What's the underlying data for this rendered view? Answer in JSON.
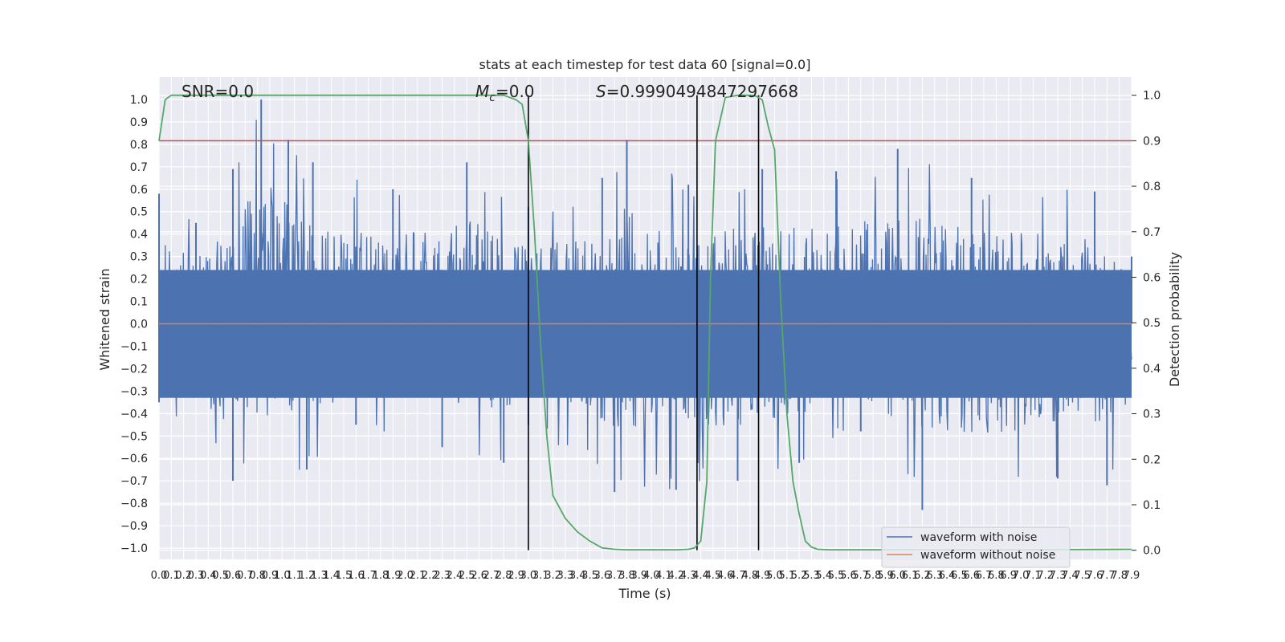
{
  "chart_data": {
    "type": "line",
    "title": "stats at each timestep for test data 60 [signal=0.0]",
    "xlabel": "Time (s)",
    "ylabel": "Whitened strain",
    "y2label": "Detection probability",
    "xlim": [
      0.0,
      7.9
    ],
    "ylim": [
      -1.05,
      1.1
    ],
    "y2lim": [
      -0.02,
      1.04
    ],
    "x_ticks": [
      "0.0",
      "0.1",
      "0.2",
      "0.3",
      "0.4",
      "0.5",
      "0.6",
      "0.7",
      "0.8",
      "0.9",
      "1.0",
      "1.1",
      "1.2",
      "1.3",
      "1.4",
      "1.5",
      "1.6",
      "1.7",
      "1.8",
      "1.9",
      "2.0",
      "2.1",
      "2.2",
      "2.3",
      "2.4",
      "2.5",
      "2.6",
      "2.7",
      "2.8",
      "2.9",
      "3.0",
      "3.1",
      "3.2",
      "3.3",
      "3.4",
      "3.5",
      "3.6",
      "3.7",
      "3.8",
      "3.9",
      "4.0",
      "4.1",
      "4.2",
      "4.3",
      "4.4",
      "4.5",
      "4.6",
      "4.7",
      "4.8",
      "4.9",
      "5.0",
      "5.1",
      "5.2",
      "5.3",
      "5.4",
      "5.5",
      "5.6",
      "5.7",
      "5.8",
      "5.9",
      "6.0",
      "6.1",
      "6.2",
      "6.3",
      "6.4",
      "6.5",
      "6.6",
      "6.7",
      "6.8",
      "6.9",
      "7.0",
      "7.1",
      "7.2",
      "7.3",
      "7.4",
      "7.5",
      "7.6",
      "7.7",
      "7.8",
      "7.9"
    ],
    "y_ticks": [
      "1.0",
      "0.9",
      "0.8",
      "0.7",
      "0.6",
      "0.5",
      "0.4",
      "0.3",
      "0.2",
      "0.1",
      "0.0",
      "−0.1",
      "−0.2",
      "−0.3",
      "−0.4",
      "−0.5",
      "−0.6",
      "−0.7",
      "−0.8",
      "−0.9",
      "−1.0"
    ],
    "y2_ticks": [
      "1.0",
      "0.9",
      "0.8",
      "0.7",
      "0.6",
      "0.5",
      "0.4",
      "0.3",
      "0.2",
      "0.1",
      "0.0"
    ],
    "grid": true,
    "legend_position": "bottom-right",
    "annotations": {
      "snr": "SNR=0.0",
      "mc_prefix": "M",
      "mc_sub": "c",
      "mc_value": "=0.0",
      "s_prefix": "S",
      "s_value": "=0.9990494847297668"
    },
    "series": [
      {
        "name": "waveform with noise",
        "color": "#4c72b0",
        "description": "dense random noise trace",
        "upper_envelope_peaks": [
          [
            0.0,
            0.58
          ],
          [
            0.3,
            0.45
          ],
          [
            0.6,
            0.69
          ],
          [
            0.83,
            1.0
          ],
          [
            1.05,
            0.82
          ],
          [
            1.25,
            0.72
          ],
          [
            1.9,
            0.6
          ],
          [
            2.5,
            0.72
          ],
          [
            3.0,
            0.52
          ],
          [
            3.6,
            0.65
          ],
          [
            3.8,
            0.82
          ],
          [
            4.3,
            0.62
          ],
          [
            4.9,
            0.69
          ],
          [
            5.5,
            0.68
          ],
          [
            6.0,
            0.78
          ],
          [
            6.6,
            0.65
          ],
          [
            7.6,
            0.59
          ],
          [
            7.9,
            0.3
          ]
        ],
        "lower_envelope_peaks": [
          [
            0.0,
            -0.35
          ],
          [
            0.6,
            -0.7
          ],
          [
            1.2,
            -0.65
          ],
          [
            1.6,
            -0.45
          ],
          [
            2.3,
            -0.55
          ],
          [
            2.8,
            -0.62
          ],
          [
            3.0,
            -0.45
          ],
          [
            3.7,
            -0.75
          ],
          [
            4.2,
            -0.74
          ],
          [
            4.7,
            -0.7
          ],
          [
            5.2,
            -0.62
          ],
          [
            5.7,
            -0.48
          ],
          [
            6.2,
            -0.83
          ],
          [
            7.3,
            -0.69
          ],
          [
            7.7,
            -0.72
          ]
        ]
      },
      {
        "name": "waveform without noise",
        "color": "#dd8452",
        "x": [
          0.0,
          7.9
        ],
        "values": [
          0.0,
          0.0
        ]
      },
      {
        "name": "",
        "color": "#55a868",
        "axis": "right",
        "x": [
          0.0,
          0.05,
          0.1,
          0.2,
          2.8,
          2.9,
          2.95,
          3.0,
          3.05,
          3.1,
          3.15,
          3.2,
          3.3,
          3.4,
          3.5,
          3.6,
          3.7,
          3.8,
          3.9,
          4.0,
          4.1,
          4.2,
          4.3,
          4.35,
          4.4,
          4.45,
          4.48,
          4.52,
          4.6,
          4.7,
          4.8,
          4.85,
          4.9,
          4.95,
          5.0,
          5.05,
          5.1,
          5.15,
          5.2,
          5.25,
          5.3,
          5.35,
          5.45,
          6.0,
          7.0,
          7.9
        ],
        "values": [
          0.9,
          0.99,
          1.0,
          1.0,
          1.0,
          0.99,
          0.98,
          0.9,
          0.7,
          0.45,
          0.25,
          0.12,
          0.07,
          0.04,
          0.02,
          0.005,
          0.002,
          0.001,
          0.001,
          0.001,
          0.001,
          0.001,
          0.002,
          0.005,
          0.02,
          0.15,
          0.6,
          0.9,
          0.995,
          1.0,
          1.0,
          0.998,
          0.99,
          0.93,
          0.88,
          0.55,
          0.3,
          0.15,
          0.08,
          0.02,
          0.007,
          0.002,
          0.001,
          0.001,
          0.001,
          0.002
        ]
      }
    ],
    "threshold_line": {
      "axis": "right",
      "value": 0.9,
      "color": "#c44e52"
    },
    "vertical_lines": {
      "color": "#000000",
      "x": [
        3.0,
        4.37,
        4.87
      ],
      "y2_range": [
        0.0,
        1.0
      ]
    }
  }
}
